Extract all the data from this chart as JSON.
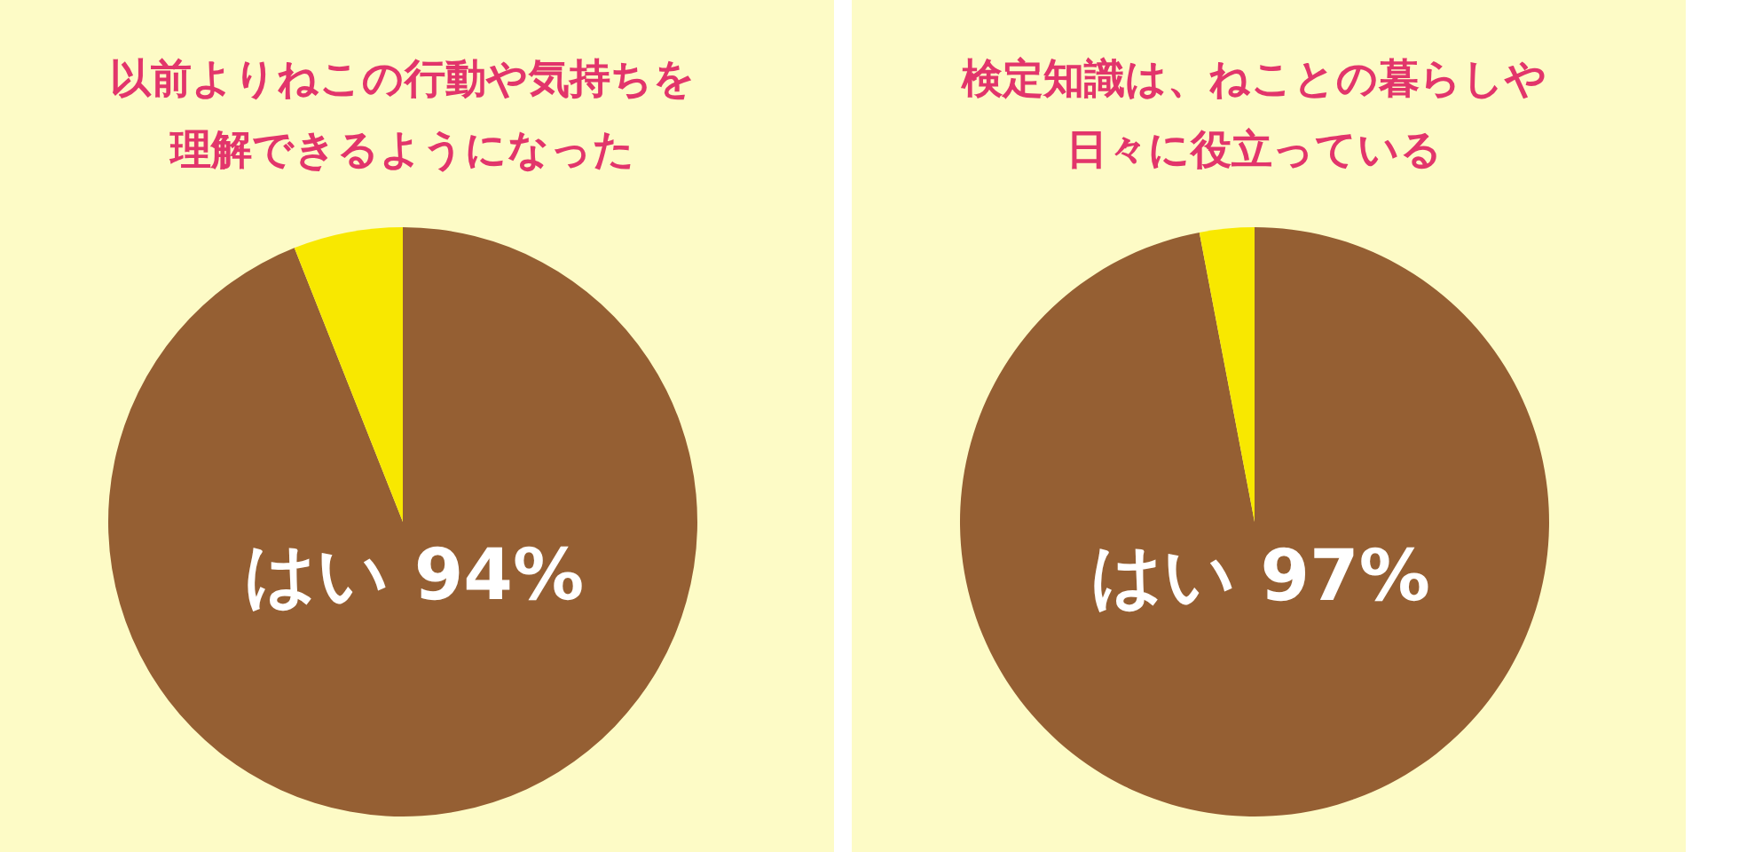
{
  "chart_data": [
    {
      "type": "pie",
      "title": "以前よりねこの行動や気持ちを理解できるようになった",
      "categories": [
        "はい",
        null
      ],
      "values": [
        94,
        6
      ],
      "colors": [
        "#955f33",
        "#f8e800"
      ],
      "value_labels": [
        "94%",
        null
      ]
    },
    {
      "type": "pie",
      "title": "検定知識は、ねことの暮らしや日々に役立っている",
      "categories": [
        "はい",
        null
      ],
      "values": [
        97,
        3
      ],
      "colors": [
        "#955f33",
        "#f8e800"
      ],
      "value_labels": [
        "97%",
        null
      ]
    }
  ]
}
